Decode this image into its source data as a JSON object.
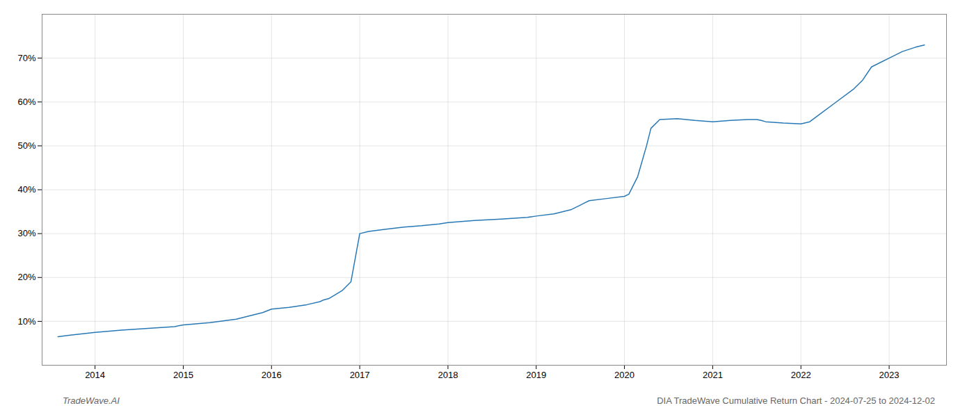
{
  "chart_data": {
    "type": "line",
    "x": [
      2013.58,
      2013.7,
      2014.0,
      2014.3,
      2014.6,
      2014.9,
      2015.0,
      2015.3,
      2015.6,
      2015.9,
      2016.0,
      2016.2,
      2016.4,
      2016.55,
      2016.58,
      2016.65,
      2016.8,
      2016.9,
      2017.0,
      2017.1,
      2017.3,
      2017.5,
      2017.7,
      2017.9,
      2018.0,
      2018.3,
      2018.6,
      2018.9,
      2019.0,
      2019.2,
      2019.4,
      2019.5,
      2019.55,
      2019.6,
      2019.8,
      2020.0,
      2020.05,
      2020.15,
      2020.25,
      2020.3,
      2020.4,
      2020.6,
      2020.8,
      2021.0,
      2021.2,
      2021.4,
      2021.5,
      2021.55,
      2021.6,
      2021.8,
      2022.0,
      2022.1,
      2022.2,
      2022.4,
      2022.6,
      2022.7,
      2022.8,
      2023.0,
      2023.15,
      2023.3,
      2023.4
    ],
    "values": [
      6.5,
      6.8,
      7.5,
      8.0,
      8.4,
      8.8,
      9.2,
      9.7,
      10.5,
      12.0,
      12.8,
      13.2,
      13.8,
      14.5,
      14.8,
      15.2,
      17.0,
      19.0,
      30.0,
      30.5,
      31.0,
      31.5,
      31.8,
      32.2,
      32.5,
      33.0,
      33.3,
      33.7,
      34.0,
      34.5,
      35.5,
      36.5,
      37.0,
      37.5,
      38.0,
      38.5,
      39.0,
      43.0,
      50.0,
      54.0,
      56.0,
      56.2,
      55.8,
      55.5,
      55.8,
      56.0,
      56.0,
      55.8,
      55.5,
      55.2,
      55.0,
      55.5,
      57.0,
      60.0,
      63.0,
      65.0,
      68.0,
      70.0,
      71.5,
      72.5,
      73.0
    ],
    "color": "#2878b5",
    "xlim": [
      2013.4,
      2023.65
    ],
    "ylim": [
      0,
      80
    ],
    "xticks": [
      2014,
      2015,
      2016,
      2017,
      2018,
      2019,
      2020,
      2021,
      2022,
      2023
    ],
    "yticks": [
      {
        "value": 10,
        "label": "10%"
      },
      {
        "value": 20,
        "label": "20%"
      },
      {
        "value": 30,
        "label": "30%"
      },
      {
        "value": 40,
        "label": "40%"
      },
      {
        "value": 50,
        "label": "50%"
      },
      {
        "value": 60,
        "label": "60%"
      },
      {
        "value": 70,
        "label": "70%"
      }
    ],
    "grid": true,
    "annotations": [
      "TradeWave.AI",
      "DIA TradeWave Cumulative Return Chart - 2024-07-25 to 2024-12-02"
    ]
  }
}
